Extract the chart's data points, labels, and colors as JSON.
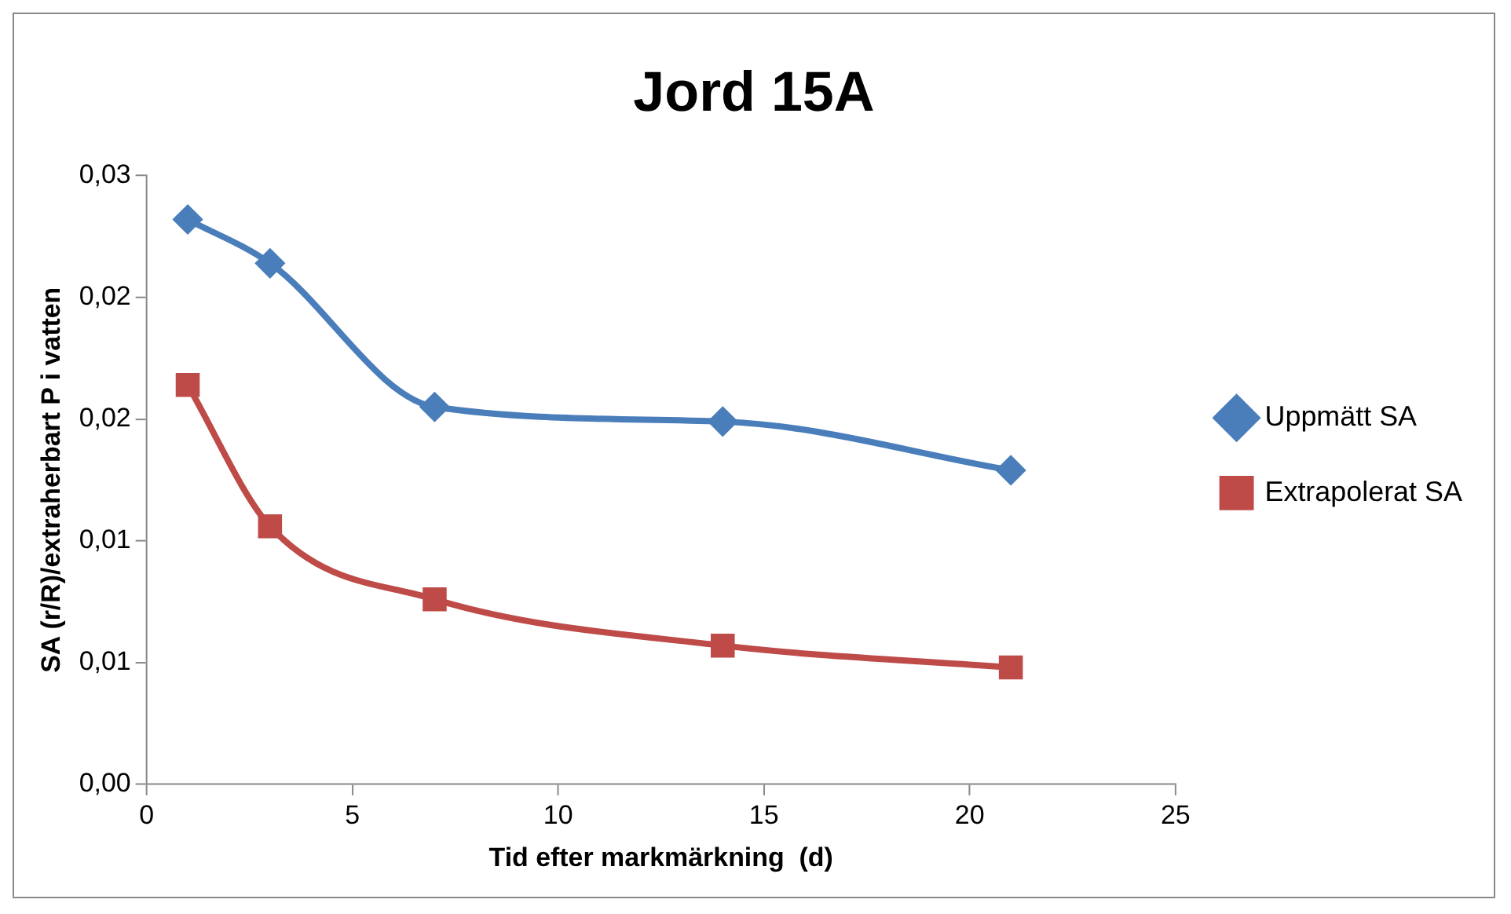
{
  "chart_data": {
    "type": "line",
    "title": "Jord 15A",
    "xlabel": "Tid efter markmärkning  (d)",
    "ylabel": "SA (r/R)/extraherbart P i vatten",
    "x": [
      1,
      3,
      7,
      14,
      21
    ],
    "series": [
      {
        "name": "Uppmätt SA",
        "color": "#4a7ebb",
        "marker": "diamond",
        "values": [
          0.0232,
          0.0214,
          0.0155,
          0.0149,
          0.0129
        ]
      },
      {
        "name": "Extrapolerat SA",
        "color": "#be4b48",
        "marker": "square",
        "values": [
          0.0164,
          0.0106,
          0.0076,
          0.0057,
          0.0048
        ]
      }
    ],
    "xlim": [
      0,
      25
    ],
    "xticks": [
      0,
      5,
      10,
      15,
      20,
      25
    ],
    "ylim": [
      0,
      0.025
    ],
    "yticks": [
      {
        "value": 0,
        "label": "0,00"
      },
      {
        "value": 0.005,
        "label": "0,01"
      },
      {
        "value": 0.01,
        "label": "0,01"
      },
      {
        "value": 0.015,
        "label": "0,02"
      },
      {
        "value": 0.02,
        "label": "0,02"
      },
      {
        "value": 0.025,
        "label": "0,03"
      }
    ],
    "grid": false,
    "legend": "right",
    "line_style": "solid"
  }
}
